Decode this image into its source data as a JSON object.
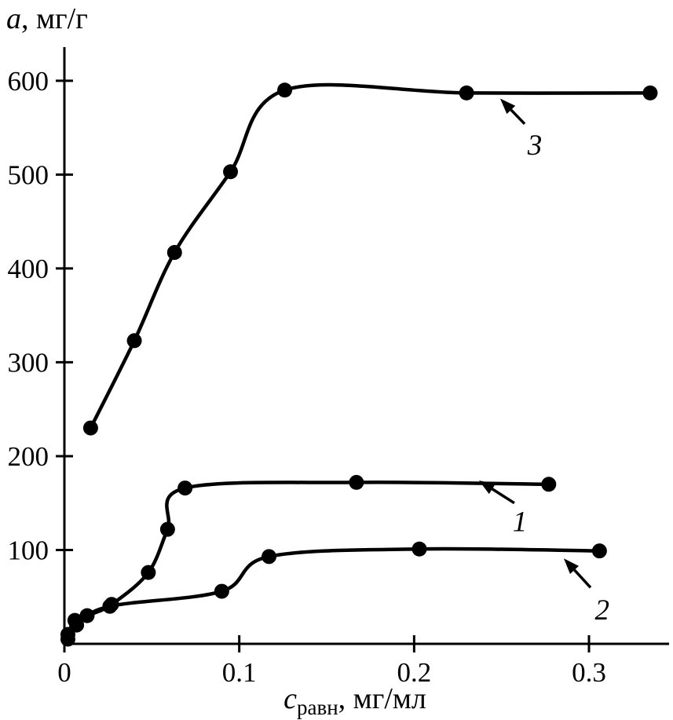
{
  "chart": {
    "ylabel_italic": "a",
    "ylabel_rest": ", мг/г",
    "xlabel_italic": "c",
    "xlabel_sub": "равн",
    "xlabel_rest": ", мг/мл"
  },
  "chart_data": {
    "type": "line",
    "title": "",
    "xlabel": "cравн, мг/мл",
    "ylabel": "a, мг/г",
    "xlim": [
      0,
      0.348
    ],
    "ylim": [
      0,
      635
    ],
    "x_ticks": [
      0,
      0.1,
      0.2,
      0.3
    ],
    "y_ticks": [
      100,
      200,
      300,
      400,
      500,
      600
    ],
    "grid": false,
    "legend": "arrow-annotations",
    "color": "#000000",
    "series": [
      {
        "name": "1",
        "points": [
          [
            0.002,
            10
          ],
          [
            0.006,
            25
          ],
          [
            0.013,
            30
          ],
          [
            0.027,
            42
          ],
          [
            0.048,
            76
          ],
          [
            0.059,
            122
          ],
          [
            0.069,
            166
          ],
          [
            0.167,
            172
          ],
          [
            0.277,
            170
          ]
        ]
      },
      {
        "name": "2",
        "points": [
          [
            0.002,
            5
          ],
          [
            0.007,
            20
          ],
          [
            0.026,
            40
          ],
          [
            0.09,
            56
          ],
          [
            0.117,
            93
          ],
          [
            0.203,
            101
          ],
          [
            0.306,
            99
          ]
        ]
      },
      {
        "name": "3",
        "points": [
          [
            0.015,
            230
          ],
          [
            0.04,
            323
          ],
          [
            0.063,
            417
          ],
          [
            0.095,
            503
          ],
          [
            0.126,
            590
          ],
          [
            0.23,
            587
          ],
          [
            0.335,
            587
          ]
        ]
      }
    ],
    "annotations": [
      {
        "label": "1",
        "label_at": [
          0.2605,
          131
        ],
        "arrow_from": [
          0.2573,
          150
        ],
        "arrow_to": [
          0.2371,
          174
        ]
      },
      {
        "label": "2",
        "label_at": [
          0.3075,
          37
        ],
        "arrow_from": [
          0.3009,
          60
        ],
        "arrow_to": [
          0.2856,
          91
        ]
      },
      {
        "label": "3",
        "label_at": [
          0.269,
          532
        ],
        "arrow_from": [
          0.2632,
          554
        ],
        "arrow_to": [
          0.2492,
          581
        ]
      }
    ]
  }
}
